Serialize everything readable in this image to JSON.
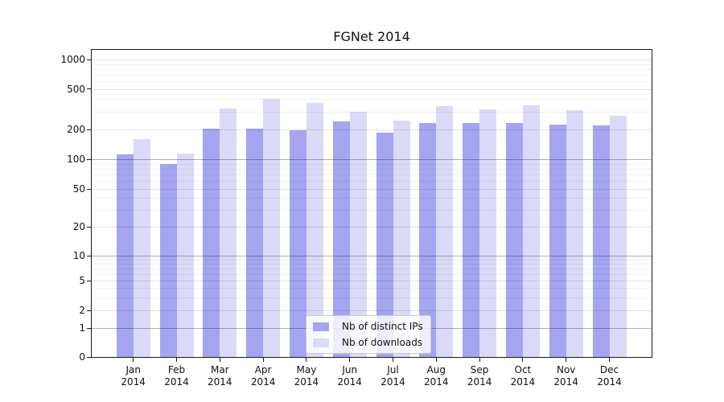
{
  "title": "FGNet 2014",
  "legend": {
    "items": [
      {
        "label": "Nb of distinct IPs",
        "color": "#a4a4f0"
      },
      {
        "label": "Nb of downloads",
        "color": "#dadaf8"
      }
    ]
  },
  "chart_data": {
    "type": "bar",
    "title": "FGNet 2014",
    "categories": [
      "Jan 2014",
      "Feb 2014",
      "Mar 2014",
      "Apr 2014",
      "May 2014",
      "Jun 2014",
      "Jul 2014",
      "Aug 2014",
      "Sep 2014",
      "Oct 2014",
      "Nov 2014",
      "Dec 2014"
    ],
    "series": [
      {
        "name": "Nb of distinct IPs",
        "color": "#a4a4f0",
        "values": [
          112,
          89,
          205,
          203,
          197,
          240,
          185,
          232,
          232,
          231,
          225,
          218
        ]
      },
      {
        "name": "Nb of downloads",
        "color": "#dadaf8",
        "values": [
          160,
          113,
          320,
          395,
          365,
          300,
          245,
          340,
          315,
          345,
          310,
          270
        ]
      }
    ],
    "xlabel": "",
    "ylabel": "",
    "y_scale": "symlog",
    "y_ticks": [
      0,
      1,
      2,
      5,
      10,
      20,
      50,
      100,
      200,
      500,
      1000
    ],
    "ylim": [
      0,
      1300
    ],
    "grid": true,
    "legend_position": "inside lower-center"
  }
}
